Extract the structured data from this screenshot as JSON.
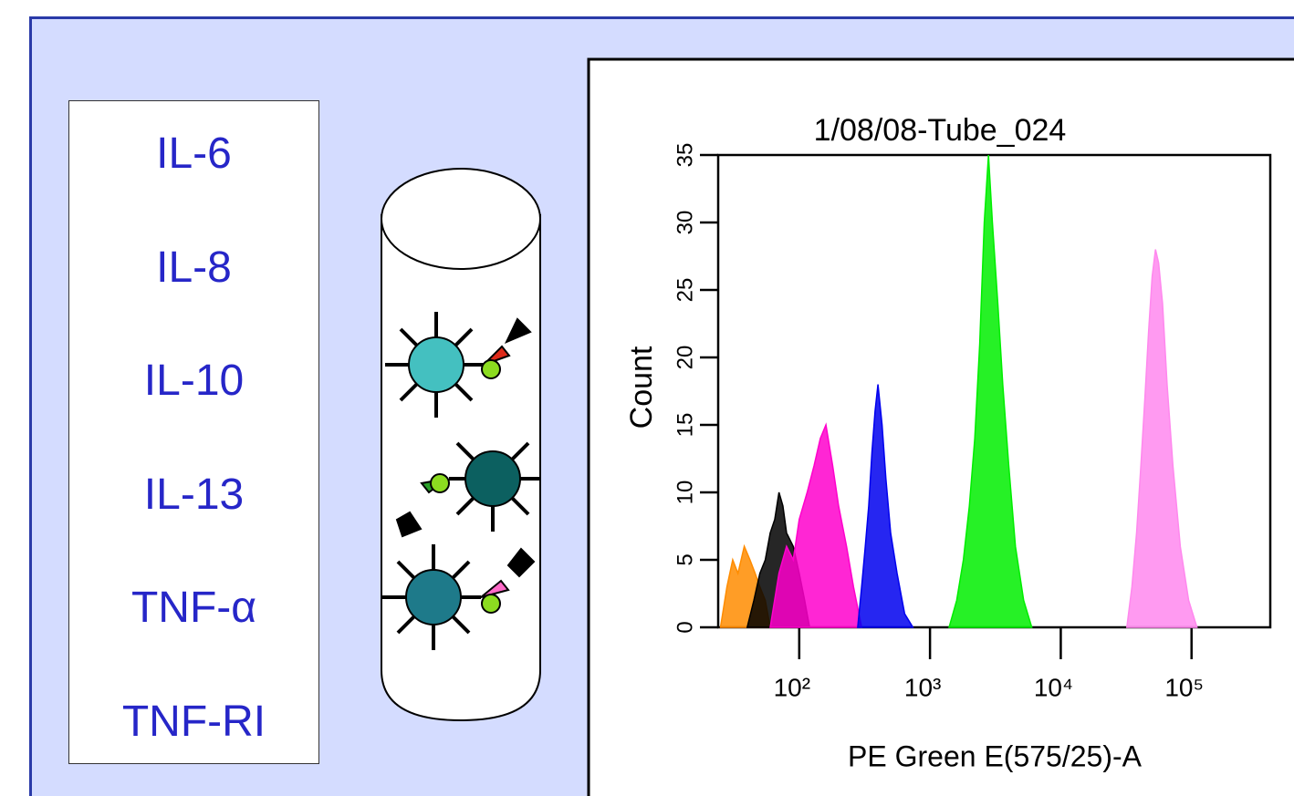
{
  "list": {
    "items": [
      "IL-6",
      "IL-8",
      "IL-10",
      "IL-13",
      "TNF-α",
      "TNF-RI"
    ]
  },
  "chart_data": {
    "type": "histogram-overlay",
    "title": "1/08/08-Tube_024",
    "x_label": "PE Green E(575/25)-A",
    "y_label": "Count",
    "xscale": "log",
    "xlim": [
      24,
      400000
    ],
    "ylim": [
      0,
      35
    ],
    "xticks": [
      {
        "value": 100,
        "label": "10²"
      },
      {
        "value": 1000,
        "label": "10³"
      },
      {
        "value": 10000,
        "label": "10⁴"
      },
      {
        "value": 100000,
        "label": "10⁵"
      }
    ],
    "yticks": [
      0,
      5,
      10,
      15,
      20,
      25,
      30,
      35
    ],
    "series": [
      {
        "color": "#ff8c00",
        "x": [
          25,
          28,
          31,
          34,
          38,
          42,
          46,
          50,
          55,
          60
        ],
        "values": [
          0,
          3,
          5,
          4,
          6,
          5,
          4,
          3,
          2,
          0
        ]
      },
      {
        "color": "#000000",
        "x": [
          40,
          45,
          50,
          55,
          60,
          65,
          70,
          75,
          80,
          90,
          100,
          110,
          120
        ],
        "values": [
          0,
          2,
          4,
          5,
          7,
          8,
          10,
          9,
          7,
          6,
          4,
          2,
          0
        ]
      },
      {
        "color": "#ff00cc",
        "x": [
          60,
          70,
          80,
          90,
          100,
          115,
          130,
          145,
          160,
          180,
          200,
          230,
          260,
          300
        ],
        "values": [
          0,
          4,
          6,
          5,
          8,
          10,
          12,
          14,
          15,
          12,
          9,
          6,
          3,
          0
        ]
      },
      {
        "color": "#0000ee",
        "x": [
          280,
          300,
          320,
          340,
          360,
          380,
          400,
          430,
          460,
          500,
          560,
          640,
          740
        ],
        "values": [
          0,
          3,
          6,
          9,
          13,
          16,
          18,
          15,
          11,
          7,
          4,
          1,
          0
        ]
      },
      {
        "color": "#00ee00",
        "x": [
          1400,
          1600,
          1800,
          2000,
          2200,
          2400,
          2600,
          2800,
          3000,
          3300,
          3600,
          4000,
          4500,
          5200,
          6000
        ],
        "values": [
          0,
          2,
          5,
          9,
          14,
          21,
          30,
          35,
          30,
          24,
          18,
          12,
          6,
          2,
          0
        ]
      },
      {
        "color": "#ff88ee",
        "x": [
          32000,
          35000,
          38000,
          41000,
          44000,
          47000,
          50000,
          53000,
          56000,
          60000,
          65000,
          72000,
          82000,
          95000,
          110000
        ],
        "values": [
          0,
          3,
          7,
          12,
          17,
          22,
          26,
          28,
          27,
          24,
          18,
          12,
          6,
          2,
          0
        ]
      }
    ]
  }
}
